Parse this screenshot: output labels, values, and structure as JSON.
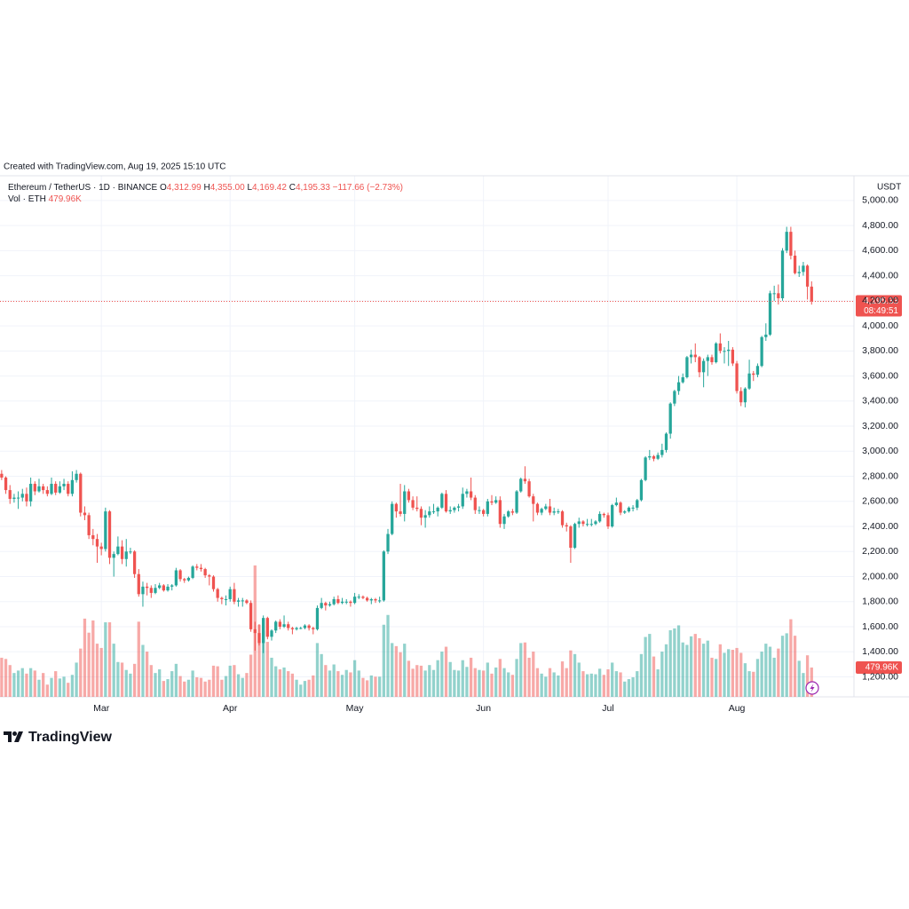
{
  "header": {
    "created": "Created with TradingView.com, Aug 19, 2025 15:10 UTC"
  },
  "chart_data": {
    "type": "candlestick",
    "symbol": "Ethereum / TetherUS · 1D · BINANCE",
    "legend_ohlc": [
      {
        "label": "O",
        "value": "4,312.99"
      },
      {
        "label": "H",
        "value": "4,355.00"
      },
      {
        "label": "L",
        "value": "4,169.42"
      },
      {
        "label": "C",
        "value": "4,195.33"
      }
    ],
    "change": "−117.66 (−2.73%)",
    "volume_title": "Vol · ETH",
    "volume_label": "479.96K",
    "currency": "USDT",
    "last_price_label": "4,195.33",
    "countdown": "08:49:51",
    "up_color": "#26a69a",
    "down_color": "#ef5350",
    "grid": true,
    "xlim": [
      -0.4,
      205.2
    ],
    "xticks": [
      {
        "value": 24,
        "label": "Mar"
      },
      {
        "value": 55,
        "label": "Apr"
      },
      {
        "value": 85,
        "label": "May"
      },
      {
        "value": 116,
        "label": "Jun"
      },
      {
        "value": 146,
        "label": "Jul"
      },
      {
        "value": 177,
        "label": "Aug"
      }
    ],
    "ylim": [
      1041,
      5197
    ],
    "yticks": [
      {
        "value": 1200,
        "label": "1,200.00"
      },
      {
        "value": 1400,
        "label": "1,400.00"
      },
      {
        "value": 1600,
        "label": "1,600.00"
      },
      {
        "value": 1800,
        "label": "1,800.00"
      },
      {
        "value": 2000,
        "label": "2,000.00"
      },
      {
        "value": 2200,
        "label": "2,200.00"
      },
      {
        "value": 2400,
        "label": "2,400.00"
      },
      {
        "value": 2600,
        "label": "2,600.00"
      },
      {
        "value": 2800,
        "label": "2,800.00"
      },
      {
        "value": 3000,
        "label": "3,000.00"
      },
      {
        "value": 3200,
        "label": "3,200.00"
      },
      {
        "value": 3400,
        "label": "3,400.00"
      },
      {
        "value": 3600,
        "label": "3,600.00"
      },
      {
        "value": 3800,
        "label": "3,800.00"
      },
      {
        "value": 4000,
        "label": "4,000.00"
      },
      {
        "value": 4200,
        "label": "4,200.00"
      },
      {
        "value": 4400,
        "label": "4,400.00"
      },
      {
        "value": 4600,
        "label": "4,600.00"
      },
      {
        "value": 4800,
        "label": "4,800.00"
      },
      {
        "value": 5000,
        "label": "5,000.00"
      }
    ],
    "ohlc": [
      [
        2820,
        2850,
        2770,
        2790
      ],
      [
        2790,
        2800,
        2660,
        2690
      ],
      [
        2690,
        2730,
        2580,
        2620
      ],
      [
        2620,
        2660,
        2590,
        2630
      ],
      [
        2630,
        2680,
        2540,
        2630
      ],
      [
        2630,
        2700,
        2600,
        2660
      ],
      [
        2660,
        2710,
        2560,
        2600
      ],
      [
        2600,
        2790,
        2560,
        2740
      ],
      [
        2740,
        2760,
        2650,
        2680
      ],
      [
        2680,
        2780,
        2670,
        2720
      ],
      [
        2720,
        2740,
        2660,
        2690
      ],
      [
        2690,
        2720,
        2640,
        2660
      ],
      [
        2660,
        2790,
        2650,
        2740
      ],
      [
        2740,
        2760,
        2650,
        2670
      ],
      [
        2670,
        2760,
        2660,
        2720
      ],
      [
        2720,
        2780,
        2690,
        2740
      ],
      [
        2740,
        2760,
        2640,
        2660
      ],
      [
        2660,
        2840,
        2640,
        2770
      ],
      [
        2770,
        2850,
        2750,
        2820
      ],
      [
        2820,
        2830,
        2480,
        2510
      ],
      [
        2510,
        2560,
        2450,
        2490
      ],
      [
        2490,
        2510,
        2300,
        2330
      ],
      [
        2330,
        2380,
        2250,
        2300
      ],
      [
        2300,
        2340,
        2110,
        2240
      ],
      [
        2240,
        2270,
        2170,
        2220
      ],
      [
        2220,
        2550,
        2200,
        2520
      ],
      [
        2520,
        2530,
        2100,
        2150
      ],
      [
        2150,
        2200,
        2000,
        2180
      ],
      [
        2180,
        2320,
        2170,
        2240
      ],
      [
        2240,
        2290,
        2100,
        2140
      ],
      [
        2140,
        2300,
        2080,
        2200
      ],
      [
        2200,
        2230,
        2180,
        2200
      ],
      [
        2200,
        2210,
        1990,
        2020
      ],
      [
        2020,
        2060,
        1840,
        1860
      ],
      [
        1860,
        1960,
        1760,
        1920
      ],
      [
        1920,
        1950,
        1850,
        1910
      ],
      [
        1910,
        1930,
        1830,
        1870
      ],
      [
        1870,
        1940,
        1860,
        1910
      ],
      [
        1910,
        1950,
        1900,
        1930
      ],
      [
        1930,
        1940,
        1880,
        1890
      ],
      [
        1890,
        1940,
        1880,
        1920
      ],
      [
        1920,
        1940,
        1890,
        1930
      ],
      [
        1930,
        2070,
        1920,
        2050
      ],
      [
        2050,
        2060,
        1960,
        1980
      ],
      [
        1980,
        1990,
        1950,
        1970
      ],
      [
        1970,
        2000,
        1960,
        1990
      ],
      [
        1990,
        2090,
        1980,
        2080
      ],
      [
        2080,
        2100,
        2050,
        2070
      ],
      [
        2070,
        2100,
        2040,
        2060
      ],
      [
        2060,
        2070,
        1990,
        2010
      ],
      [
        2010,
        2020,
        1930,
        2000
      ],
      [
        2000,
        2010,
        1880,
        1900
      ],
      [
        1900,
        1910,
        1800,
        1830
      ],
      [
        1830,
        1840,
        1780,
        1820
      ],
      [
        1820,
        1850,
        1770,
        1820
      ],
      [
        1820,
        1920,
        1800,
        1900
      ],
      [
        1900,
        1950,
        1780,
        1800
      ],
      [
        1800,
        1830,
        1760,
        1810
      ],
      [
        1810,
        1830,
        1760,
        1810
      ],
      [
        1810,
        1820,
        1780,
        1790
      ],
      [
        1790,
        1810,
        1560,
        1580
      ],
      [
        1580,
        1640,
        1410,
        1550
      ],
      [
        1550,
        1620,
        1450,
        1470
      ],
      [
        1470,
        1690,
        1390,
        1670
      ],
      [
        1670,
        1680,
        1500,
        1520
      ],
      [
        1520,
        1580,
        1490,
        1570
      ],
      [
        1570,
        1650,
        1550,
        1640
      ],
      [
        1640,
        1660,
        1580,
        1600
      ],
      [
        1600,
        1690,
        1590,
        1620
      ],
      [
        1620,
        1640,
        1570,
        1590
      ],
      [
        1590,
        1600,
        1540,
        1580
      ],
      [
        1580,
        1600,
        1570,
        1590
      ],
      [
        1590,
        1600,
        1580,
        1590
      ],
      [
        1590,
        1620,
        1580,
        1610
      ],
      [
        1610,
        1620,
        1570,
        1590
      ],
      [
        1590,
        1600,
        1540,
        1580
      ],
      [
        1580,
        1770,
        1570,
        1750
      ],
      [
        1750,
        1830,
        1740,
        1790
      ],
      [
        1790,
        1800,
        1730,
        1770
      ],
      [
        1770,
        1800,
        1760,
        1780
      ],
      [
        1780,
        1840,
        1770,
        1820
      ],
      [
        1820,
        1850,
        1780,
        1790
      ],
      [
        1790,
        1830,
        1780,
        1800
      ],
      [
        1800,
        1820,
        1780,
        1800
      ],
      [
        1800,
        1810,
        1760,
        1790
      ],
      [
        1790,
        1870,
        1780,
        1840
      ],
      [
        1840,
        1860,
        1820,
        1840
      ],
      [
        1840,
        1850,
        1820,
        1830
      ],
      [
        1830,
        1840,
        1800,
        1810
      ],
      [
        1810,
        1830,
        1780,
        1820
      ],
      [
        1820,
        1830,
        1790,
        1810
      ],
      [
        1810,
        1840,
        1790,
        1810
      ],
      [
        1810,
        2210,
        1800,
        2200
      ],
      [
        2200,
        2380,
        2180,
        2340
      ],
      [
        2340,
        2600,
        2330,
        2580
      ],
      [
        2580,
        2590,
        2470,
        2520
      ],
      [
        2520,
        2740,
        2480,
        2500
      ],
      [
        2500,
        2730,
        2440,
        2680
      ],
      [
        2680,
        2700,
        2590,
        2610
      ],
      [
        2610,
        2640,
        2530,
        2550
      ],
      [
        2550,
        2640,
        2520,
        2540
      ],
      [
        2540,
        2560,
        2410,
        2470
      ],
      [
        2470,
        2530,
        2390,
        2490
      ],
      [
        2490,
        2560,
        2470,
        2520
      ],
      [
        2520,
        2580,
        2500,
        2520
      ],
      [
        2520,
        2560,
        2480,
        2550
      ],
      [
        2550,
        2670,
        2540,
        2660
      ],
      [
        2660,
        2690,
        2510,
        2520
      ],
      [
        2520,
        2560,
        2500,
        2530
      ],
      [
        2530,
        2560,
        2510,
        2550
      ],
      [
        2550,
        2580,
        2520,
        2560
      ],
      [
        2560,
        2710,
        2540,
        2660
      ],
      [
        2660,
        2700,
        2630,
        2680
      ],
      [
        2680,
        2790,
        2610,
        2630
      ],
      [
        2630,
        2650,
        2500,
        2530
      ],
      [
        2530,
        2560,
        2500,
        2530
      ],
      [
        2530,
        2540,
        2480,
        2500
      ],
      [
        2500,
        2620,
        2480,
        2600
      ],
      [
        2600,
        2650,
        2570,
        2590
      ],
      [
        2590,
        2640,
        2580,
        2610
      ],
      [
        2610,
        2640,
        2390,
        2420
      ],
      [
        2420,
        2500,
        2380,
        2480
      ],
      [
        2480,
        2530,
        2470,
        2520
      ],
      [
        2520,
        2540,
        2490,
        2510
      ],
      [
        2510,
        2690,
        2500,
        2680
      ],
      [
        2680,
        2790,
        2670,
        2780
      ],
      [
        2780,
        2880,
        2740,
        2760
      ],
      [
        2760,
        2780,
        2630,
        2640
      ],
      [
        2640,
        2660,
        2440,
        2580
      ],
      [
        2580,
        2590,
        2490,
        2510
      ],
      [
        2510,
        2550,
        2490,
        2540
      ],
      [
        2540,
        2580,
        2530,
        2560
      ],
      [
        2560,
        2620,
        2490,
        2510
      ],
      [
        2510,
        2550,
        2490,
        2520
      ],
      [
        2520,
        2540,
        2500,
        2520
      ],
      [
        2520,
        2530,
        2390,
        2410
      ],
      [
        2410,
        2430,
        2360,
        2400
      ],
      [
        2400,
        2410,
        2110,
        2230
      ],
      [
        2230,
        2430,
        2220,
        2420
      ],
      [
        2420,
        2470,
        2390,
        2440
      ],
      [
        2440,
        2450,
        2400,
        2420
      ],
      [
        2420,
        2460,
        2400,
        2420
      ],
      [
        2420,
        2460,
        2400,
        2420
      ],
      [
        2420,
        2450,
        2410,
        2440
      ],
      [
        2440,
        2520,
        2430,
        2500
      ],
      [
        2500,
        2510,
        2470,
        2490
      ],
      [
        2490,
        2510,
        2380,
        2400
      ],
      [
        2400,
        2580,
        2390,
        2570
      ],
      [
        2570,
        2630,
        2560,
        2590
      ],
      [
        2590,
        2600,
        2490,
        2510
      ],
      [
        2510,
        2530,
        2500,
        2520
      ],
      [
        2520,
        2560,
        2510,
        2550
      ],
      [
        2550,
        2570,
        2520,
        2550
      ],
      [
        2550,
        2620,
        2530,
        2610
      ],
      [
        2610,
        2780,
        2600,
        2770
      ],
      [
        2770,
        2960,
        2760,
        2950
      ],
      [
        2950,
        3010,
        2930,
        2960
      ],
      [
        2960,
        2970,
        2920,
        2940
      ],
      [
        2940,
        2990,
        2930,
        2970
      ],
      [
        2970,
        3060,
        2950,
        3010
      ],
      [
        3010,
        3150,
        2990,
        3140
      ],
      [
        3140,
        3390,
        3100,
        3380
      ],
      [
        3380,
        3490,
        3360,
        3480
      ],
      [
        3480,
        3600,
        3450,
        3550
      ],
      [
        3550,
        3620,
        3540,
        3590
      ],
      [
        3590,
        3760,
        3580,
        3750
      ],
      [
        3750,
        3810,
        3700,
        3770
      ],
      [
        3770,
        3860,
        3710,
        3750
      ],
      [
        3750,
        3760,
        3590,
        3630
      ],
      [
        3630,
        3740,
        3510,
        3720
      ],
      [
        3720,
        3770,
        3600,
        3750
      ],
      [
        3750,
        3770,
        3690,
        3710
      ],
      [
        3710,
        3870,
        3700,
        3860
      ],
      [
        3860,
        3940,
        3780,
        3800
      ],
      [
        3800,
        3830,
        3700,
        3800
      ],
      [
        3800,
        3880,
        3680,
        3810
      ],
      [
        3810,
        3830,
        3680,
        3700
      ],
      [
        3700,
        3720,
        3460,
        3480
      ],
      [
        3480,
        3510,
        3360,
        3390
      ],
      [
        3390,
        3510,
        3350,
        3500
      ],
      [
        3500,
        3730,
        3490,
        3620
      ],
      [
        3620,
        3640,
        3560,
        3610
      ],
      [
        3610,
        3700,
        3590,
        3680
      ],
      [
        3680,
        3920,
        3670,
        3910
      ],
      [
        3910,
        4020,
        3880,
        3930
      ],
      [
        3930,
        4280,
        3920,
        4260
      ],
      [
        4260,
        4320,
        4200,
        4260
      ],
      [
        4260,
        4330,
        4170,
        4220
      ],
      [
        4220,
        4620,
        4200,
        4600
      ],
      [
        4600,
        4790,
        4580,
        4750
      ],
      [
        4750,
        4790,
        4530,
        4560
      ],
      [
        4560,
        4600,
        4410,
        4420
      ],
      [
        4420,
        4480,
        4390,
        4430
      ],
      [
        4430,
        4510,
        4400,
        4480
      ],
      [
        4480,
        4490,
        4210,
        4312.99
      ],
      [
        4312.99,
        4355,
        4169.42,
        4195.33
      ]
    ],
    "volumes": [
      640000,
      620000,
      520000,
      390000,
      430000,
      470000,
      380000,
      470000,
      430000,
      280000,
      390000,
      200000,
      310000,
      420000,
      300000,
      330000,
      230000,
      360000,
      560000,
      790000,
      1280000,
      1050000,
      1250000,
      870000,
      800000,
      1220000,
      1220000,
      870000,
      570000,
      560000,
      440000,
      380000,
      540000,
      1230000,
      850000,
      740000,
      520000,
      390000,
      450000,
      260000,
      290000,
      420000,
      540000,
      340000,
      250000,
      280000,
      430000,
      320000,
      310000,
      250000,
      280000,
      510000,
      500000,
      280000,
      340000,
      510000,
      520000,
      370000,
      310000,
      390000,
      690000,
      2150000,
      1180000,
      1080000,
      900000,
      640000,
      500000,
      450000,
      480000,
      420000,
      380000,
      280000,
      200000,
      260000,
      280000,
      350000,
      880000,
      700000,
      520000,
      430000,
      530000,
      420000,
      360000,
      440000,
      400000,
      600000,
      430000,
      310000,
      270000,
      350000,
      330000,
      330000,
      1180000,
      1340000,
      880000,
      830000,
      730000,
      870000,
      590000,
      460000,
      520000,
      510000,
      430000,
      520000,
      440000,
      600000,
      740000,
      820000,
      570000,
      440000,
      430000,
      600000,
      490000,
      640000,
      470000,
      440000,
      430000,
      560000,
      380000,
      480000,
      620000,
      470000,
      400000,
      360000,
      620000,
      880000,
      890000,
      640000,
      740000,
      470000,
      380000,
      330000,
      470000,
      400000,
      350000,
      580000,
      470000,
      760000,
      700000,
      560000,
      420000,
      370000,
      380000,
      370000,
      460000,
      360000,
      450000,
      560000,
      420000,
      400000,
      250000,
      290000,
      320000,
      420000,
      700000,
      980000,
      1030000,
      660000,
      450000,
      740000,
      860000,
      1090000,
      1120000,
      1170000,
      890000,
      850000,
      990000,
      1030000,
      960000,
      870000,
      920000,
      640000,
      620000,
      860000,
      720000,
      780000,
      770000,
      800000,
      720000,
      550000,
      420000,
      410000,
      620000,
      740000,
      870000,
      820000,
      640000,
      790000,
      1000000,
      1040000,
      1270000,
      1000000,
      590000,
      390000,
      680000,
      479960
    ]
  },
  "footer": {
    "brand": "TradingView"
  }
}
